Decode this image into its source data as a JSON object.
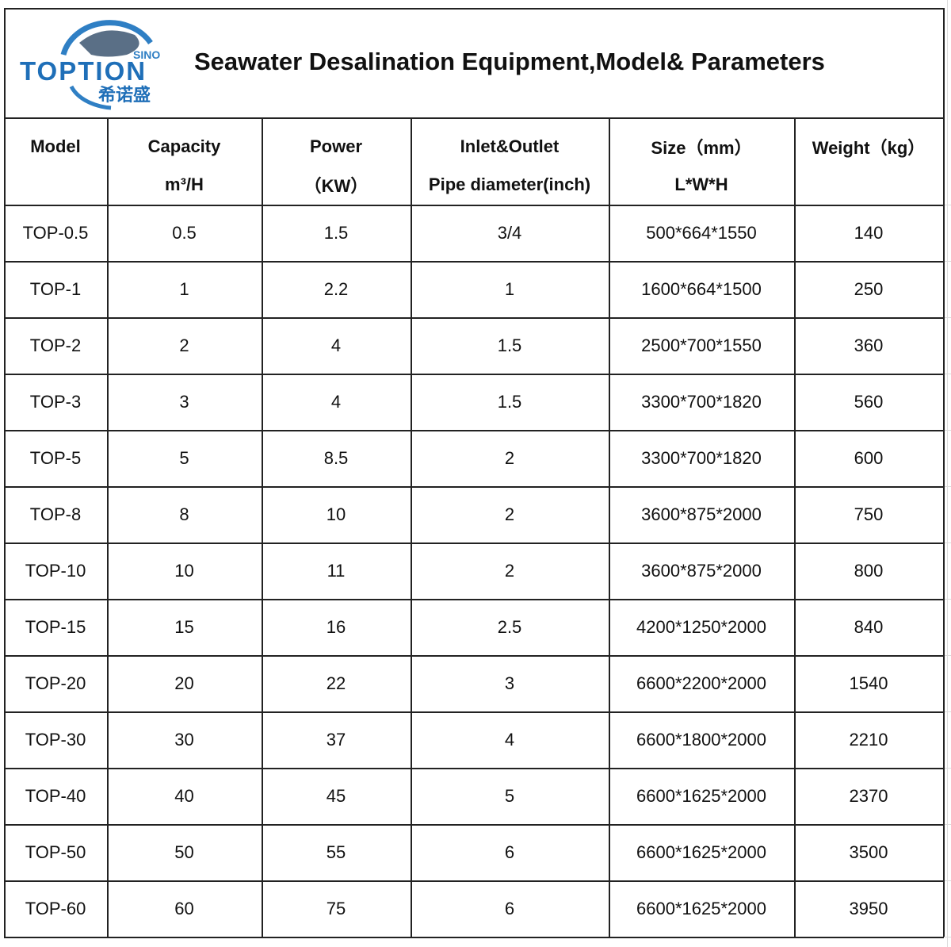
{
  "header": {
    "title": "Seawater Desalination Equipment,Model& Parameters",
    "logo": {
      "brand": "TOPTION",
      "sino": "SINO",
      "chinese": "希诺盛"
    }
  },
  "table": {
    "columns": [
      {
        "title": "Model"
      },
      {
        "title": "Capacity",
        "unit": "m³/H"
      },
      {
        "title": "Power",
        "unit": "（KW）"
      },
      {
        "title": "Inlet&Outlet",
        "unit": "Pipe diameter(inch)"
      },
      {
        "title": "Size（mm）",
        "unit": "L*W*H"
      },
      {
        "title": "Weight（kg）"
      }
    ],
    "rows": [
      [
        "TOP-0.5",
        "0.5",
        "1.5",
        "3/4",
        "500*664*1550",
        "140"
      ],
      [
        "TOP-1",
        "1",
        "2.2",
        "1",
        "1600*664*1500",
        "250"
      ],
      [
        "TOP-2",
        "2",
        "4",
        "1.5",
        "2500*700*1550",
        "360"
      ],
      [
        "TOP-3",
        "3",
        "4",
        "1.5",
        "3300*700*1820",
        "560"
      ],
      [
        "TOP-5",
        "5",
        "8.5",
        "2",
        "3300*700*1820",
        "600"
      ],
      [
        "TOP-8",
        "8",
        "10",
        "2",
        "3600*875*2000",
        "750"
      ],
      [
        "TOP-10",
        "10",
        "11",
        "2",
        "3600*875*2000",
        "800"
      ],
      [
        "TOP-15",
        "15",
        "16",
        "2.5",
        "4200*1250*2000",
        "840"
      ],
      [
        "TOP-20",
        "20",
        "22",
        "3",
        "6600*2200*2000",
        "1540"
      ],
      [
        "TOP-30",
        "30",
        "37",
        "4",
        "6600*1800*2000",
        "2210"
      ],
      [
        "TOP-40",
        "40",
        "45",
        "5",
        "6600*1625*2000",
        "2370"
      ],
      [
        "TOP-50",
        "50",
        "55",
        "6",
        "6600*1625*2000",
        "3500"
      ],
      [
        "TOP-60",
        "60",
        "75",
        "6",
        "6600*1625*2000",
        "3950"
      ]
    ]
  }
}
